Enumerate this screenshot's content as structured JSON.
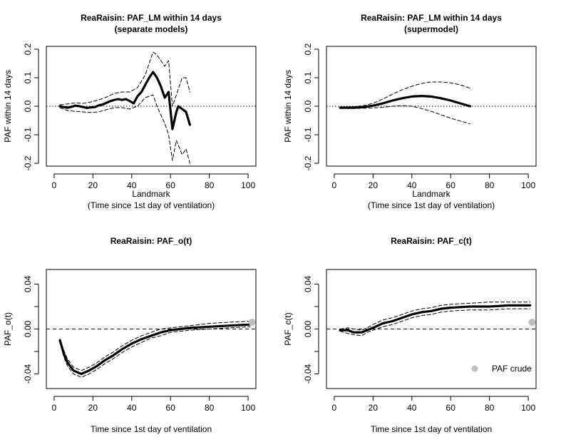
{
  "figure_title": "ReaRaisin PAF panels",
  "colors": {
    "line": "#000000",
    "crude_point": "#bebebe",
    "background": "#ffffff"
  },
  "chart_data": [
    {
      "type": "line",
      "title": [
        "ReaRaisin: PAF_LM within 14 days",
        "(separate models)"
      ],
      "xlabel": [
        "Landmark",
        "(Time since 1st day of ventilation)"
      ],
      "ylabel": "PAF within 14 days",
      "xlim": [
        -4,
        104
      ],
      "ylim": [
        -0.21,
        0.21
      ],
      "xticks": [
        0,
        20,
        40,
        60,
        80,
        100
      ],
      "yticks": [
        -0.2,
        -0.1,
        0.0,
        0.1,
        0.2
      ],
      "ytick_labels": [
        "-0.2",
        "-0.1",
        "0.0",
        "0.1",
        "0.2"
      ],
      "hline": {
        "y": 0,
        "style": "dotted"
      },
      "series": [
        {
          "name": "estimate",
          "style": "thick",
          "x": [
            3,
            5,
            7,
            9,
            11,
            13,
            15,
            17,
            19,
            21,
            23,
            25,
            27,
            29,
            31,
            33,
            35,
            37,
            39,
            41,
            43,
            45,
            47,
            49,
            51,
            53,
            55,
            57,
            59,
            61,
            63,
            64,
            66,
            68,
            70
          ],
          "y": [
            0.0,
            -0.003,
            -0.005,
            -0.002,
            0.002,
            0.0,
            -0.003,
            -0.006,
            -0.004,
            -0.003,
            0.003,
            0.006,
            0.012,
            0.018,
            0.022,
            0.025,
            0.022,
            0.025,
            0.018,
            0.01,
            0.035,
            0.05,
            0.075,
            0.1,
            0.12,
            0.1,
            0.07,
            0.03,
            0.05,
            -0.08,
            -0.02,
            0.0,
            -0.01,
            -0.02,
            -0.065
          ]
        },
        {
          "name": "upper CI",
          "style": "dashed",
          "x": [
            3,
            7,
            11,
            15,
            19,
            23,
            27,
            31,
            35,
            39,
            43,
            47,
            51,
            53,
            55,
            57,
            59,
            61,
            63,
            66,
            68,
            70
          ],
          "y": [
            0.005,
            0.008,
            0.012,
            0.01,
            0.015,
            0.022,
            0.032,
            0.045,
            0.05,
            0.05,
            0.065,
            0.11,
            0.19,
            0.18,
            0.16,
            0.14,
            0.16,
            0.0,
            0.04,
            0.1,
            0.1,
            0.05
          ]
        },
        {
          "name": "lower CI",
          "style": "dashed",
          "x": [
            3,
            7,
            11,
            15,
            19,
            23,
            27,
            31,
            35,
            39,
            43,
            47,
            51,
            53,
            55,
            57,
            59,
            61,
            63,
            66,
            68,
            70
          ],
          "y": [
            -0.005,
            -0.015,
            -0.018,
            -0.02,
            -0.022,
            -0.02,
            -0.012,
            -0.005,
            -0.005,
            -0.01,
            0.0,
            0.03,
            0.04,
            0.0,
            -0.03,
            -0.06,
            -0.1,
            -0.19,
            -0.12,
            -0.17,
            -0.15,
            -0.2
          ]
        }
      ]
    },
    {
      "type": "line",
      "title": [
        "ReaRaisin: PAF_LM within 14 days",
        "(supermodel)"
      ],
      "xlabel": [
        "Landmark",
        "(Time since 1st day of ventilation)"
      ],
      "ylabel": "PAF within 14 days",
      "xlim": [
        -4,
        104
      ],
      "ylim": [
        -0.21,
        0.21
      ],
      "xticks": [
        0,
        20,
        40,
        60,
        80,
        100
      ],
      "yticks": [
        -0.2,
        -0.1,
        0.0,
        0.1,
        0.2
      ],
      "ytick_labels": [
        "-0.2",
        "-0.1",
        "0.0",
        "0.1",
        "0.2"
      ],
      "hline": {
        "y": 0,
        "style": "dotted"
      },
      "series": [
        {
          "name": "estimate",
          "style": "thick",
          "x": [
            3,
            10,
            15,
            20,
            25,
            30,
            35,
            40,
            45,
            50,
            55,
            60,
            65,
            70
          ],
          "y": [
            -0.005,
            -0.005,
            -0.003,
            0.002,
            0.01,
            0.02,
            0.028,
            0.034,
            0.036,
            0.034,
            0.028,
            0.02,
            0.01,
            0.0
          ]
        },
        {
          "name": "upper CI",
          "style": "dashed",
          "x": [
            3,
            10,
            15,
            20,
            25,
            30,
            35,
            40,
            45,
            50,
            55,
            60,
            65,
            70
          ],
          "y": [
            -0.003,
            -0.002,
            0.002,
            0.01,
            0.025,
            0.042,
            0.058,
            0.07,
            0.08,
            0.085,
            0.085,
            0.082,
            0.075,
            0.063
          ]
        },
        {
          "name": "lower CI",
          "style": "dashed",
          "x": [
            3,
            10,
            15,
            20,
            25,
            30,
            35,
            40,
            45,
            50,
            55,
            60,
            65,
            70
          ],
          "y": [
            -0.008,
            -0.008,
            -0.007,
            -0.006,
            -0.004,
            0.0,
            0.002,
            0.0,
            -0.008,
            -0.018,
            -0.03,
            -0.042,
            -0.052,
            -0.062
          ]
        }
      ]
    },
    {
      "type": "line",
      "title": [
        "ReaRaisin: PAF_o(t)"
      ],
      "xlabel": [
        "Time since 1st day of ventilation"
      ],
      "ylabel": "PAF_o(t)",
      "xlim": [
        -4,
        104
      ],
      "ylim": [
        -0.053,
        0.053
      ],
      "xticks": [
        0,
        20,
        40,
        60,
        80,
        100
      ],
      "yticks": [
        -0.04,
        -0.02,
        0.0,
        0.02,
        0.04
      ],
      "ytick_labels": [
        "-0.04",
        "",
        "0.00",
        "",
        "0.04"
      ],
      "hline": {
        "y": 0,
        "style": "dashed"
      },
      "series": [
        {
          "name": "estimate",
          "style": "thick",
          "x": [
            3,
            5,
            7,
            10,
            14,
            18,
            22,
            26,
            30,
            35,
            40,
            45,
            50,
            55,
            60,
            70,
            80,
            90,
            101
          ],
          "y": [
            -0.01,
            -0.022,
            -0.03,
            -0.037,
            -0.04,
            -0.037,
            -0.033,
            -0.028,
            -0.024,
            -0.018,
            -0.013,
            -0.009,
            -0.006,
            -0.003,
            -0.001,
            0.001,
            0.002,
            0.003,
            0.004
          ]
        },
        {
          "name": "upper CI",
          "style": "dashed",
          "x": [
            3,
            5,
            7,
            10,
            14,
            18,
            22,
            26,
            30,
            35,
            40,
            45,
            50,
            55,
            60,
            70,
            80,
            90,
            101
          ],
          "y": [
            -0.009,
            -0.019,
            -0.027,
            -0.034,
            -0.037,
            -0.034,
            -0.03,
            -0.025,
            -0.021,
            -0.015,
            -0.01,
            -0.006,
            -0.003,
            0.0,
            0.001,
            0.003,
            0.005,
            0.006,
            0.007
          ]
        },
        {
          "name": "lower CI",
          "style": "dashed",
          "x": [
            3,
            5,
            7,
            10,
            14,
            18,
            22,
            26,
            30,
            35,
            40,
            45,
            50,
            55,
            60,
            70,
            80,
            90,
            101
          ],
          "y": [
            -0.011,
            -0.025,
            -0.033,
            -0.04,
            -0.043,
            -0.04,
            -0.036,
            -0.031,
            -0.027,
            -0.021,
            -0.016,
            -0.012,
            -0.008,
            -0.006,
            -0.003,
            -0.001,
            0.0,
            0.001,
            0.002
          ]
        }
      ],
      "points": [
        {
          "name": "PAF crude",
          "x": 102,
          "y": 0.006
        }
      ]
    },
    {
      "type": "line",
      "title": [
        "ReaRaisin: PAF_c(t)"
      ],
      "xlabel": [
        "Time since 1st day of ventilation"
      ],
      "ylabel": "PAF_c(t)",
      "xlim": [
        -4,
        104
      ],
      "ylim": [
        -0.053,
        0.053
      ],
      "xticks": [
        0,
        20,
        40,
        60,
        80,
        100
      ],
      "yticks": [
        -0.04,
        -0.02,
        0.0,
        0.02,
        0.04
      ],
      "ytick_labels": [
        "-0.04",
        "",
        "0.00",
        "",
        "0.04"
      ],
      "hline": {
        "y": 0,
        "style": "dashed"
      },
      "series": [
        {
          "name": "estimate",
          "style": "thick",
          "x": [
            3,
            7,
            10,
            14,
            17,
            20,
            25,
            30,
            35,
            40,
            45,
            50,
            55,
            60,
            70,
            80,
            90,
            101
          ],
          "y": [
            -0.001,
            -0.001,
            -0.003,
            -0.003,
            -0.001,
            0.001,
            0.005,
            0.007,
            0.01,
            0.013,
            0.015,
            0.016,
            0.018,
            0.019,
            0.02,
            0.02,
            0.021,
            0.021
          ]
        },
        {
          "name": "upper CI",
          "style": "dashed",
          "x": [
            3,
            7,
            10,
            14,
            17,
            20,
            25,
            30,
            35,
            40,
            45,
            50,
            55,
            60,
            70,
            80,
            90,
            101
          ],
          "y": [
            0.0,
            0.001,
            0.0,
            -0.001,
            0.001,
            0.004,
            0.008,
            0.01,
            0.013,
            0.016,
            0.018,
            0.019,
            0.021,
            0.022,
            0.023,
            0.024,
            0.024,
            0.024
          ]
        },
        {
          "name": "lower CI",
          "style": "dashed",
          "x": [
            3,
            7,
            10,
            14,
            17,
            20,
            25,
            30,
            35,
            40,
            45,
            50,
            55,
            60,
            70,
            80,
            90,
            101
          ],
          "y": [
            -0.002,
            -0.004,
            -0.005,
            -0.006,
            -0.003,
            -0.001,
            0.002,
            0.004,
            0.007,
            0.01,
            0.012,
            0.013,
            0.015,
            0.016,
            0.017,
            0.017,
            0.018,
            0.018
          ]
        }
      ],
      "points": [
        {
          "name": "PAF crude",
          "x": 102,
          "y": 0.006
        }
      ],
      "legend": {
        "location": "bottom-right",
        "label": "PAF crude"
      }
    }
  ]
}
